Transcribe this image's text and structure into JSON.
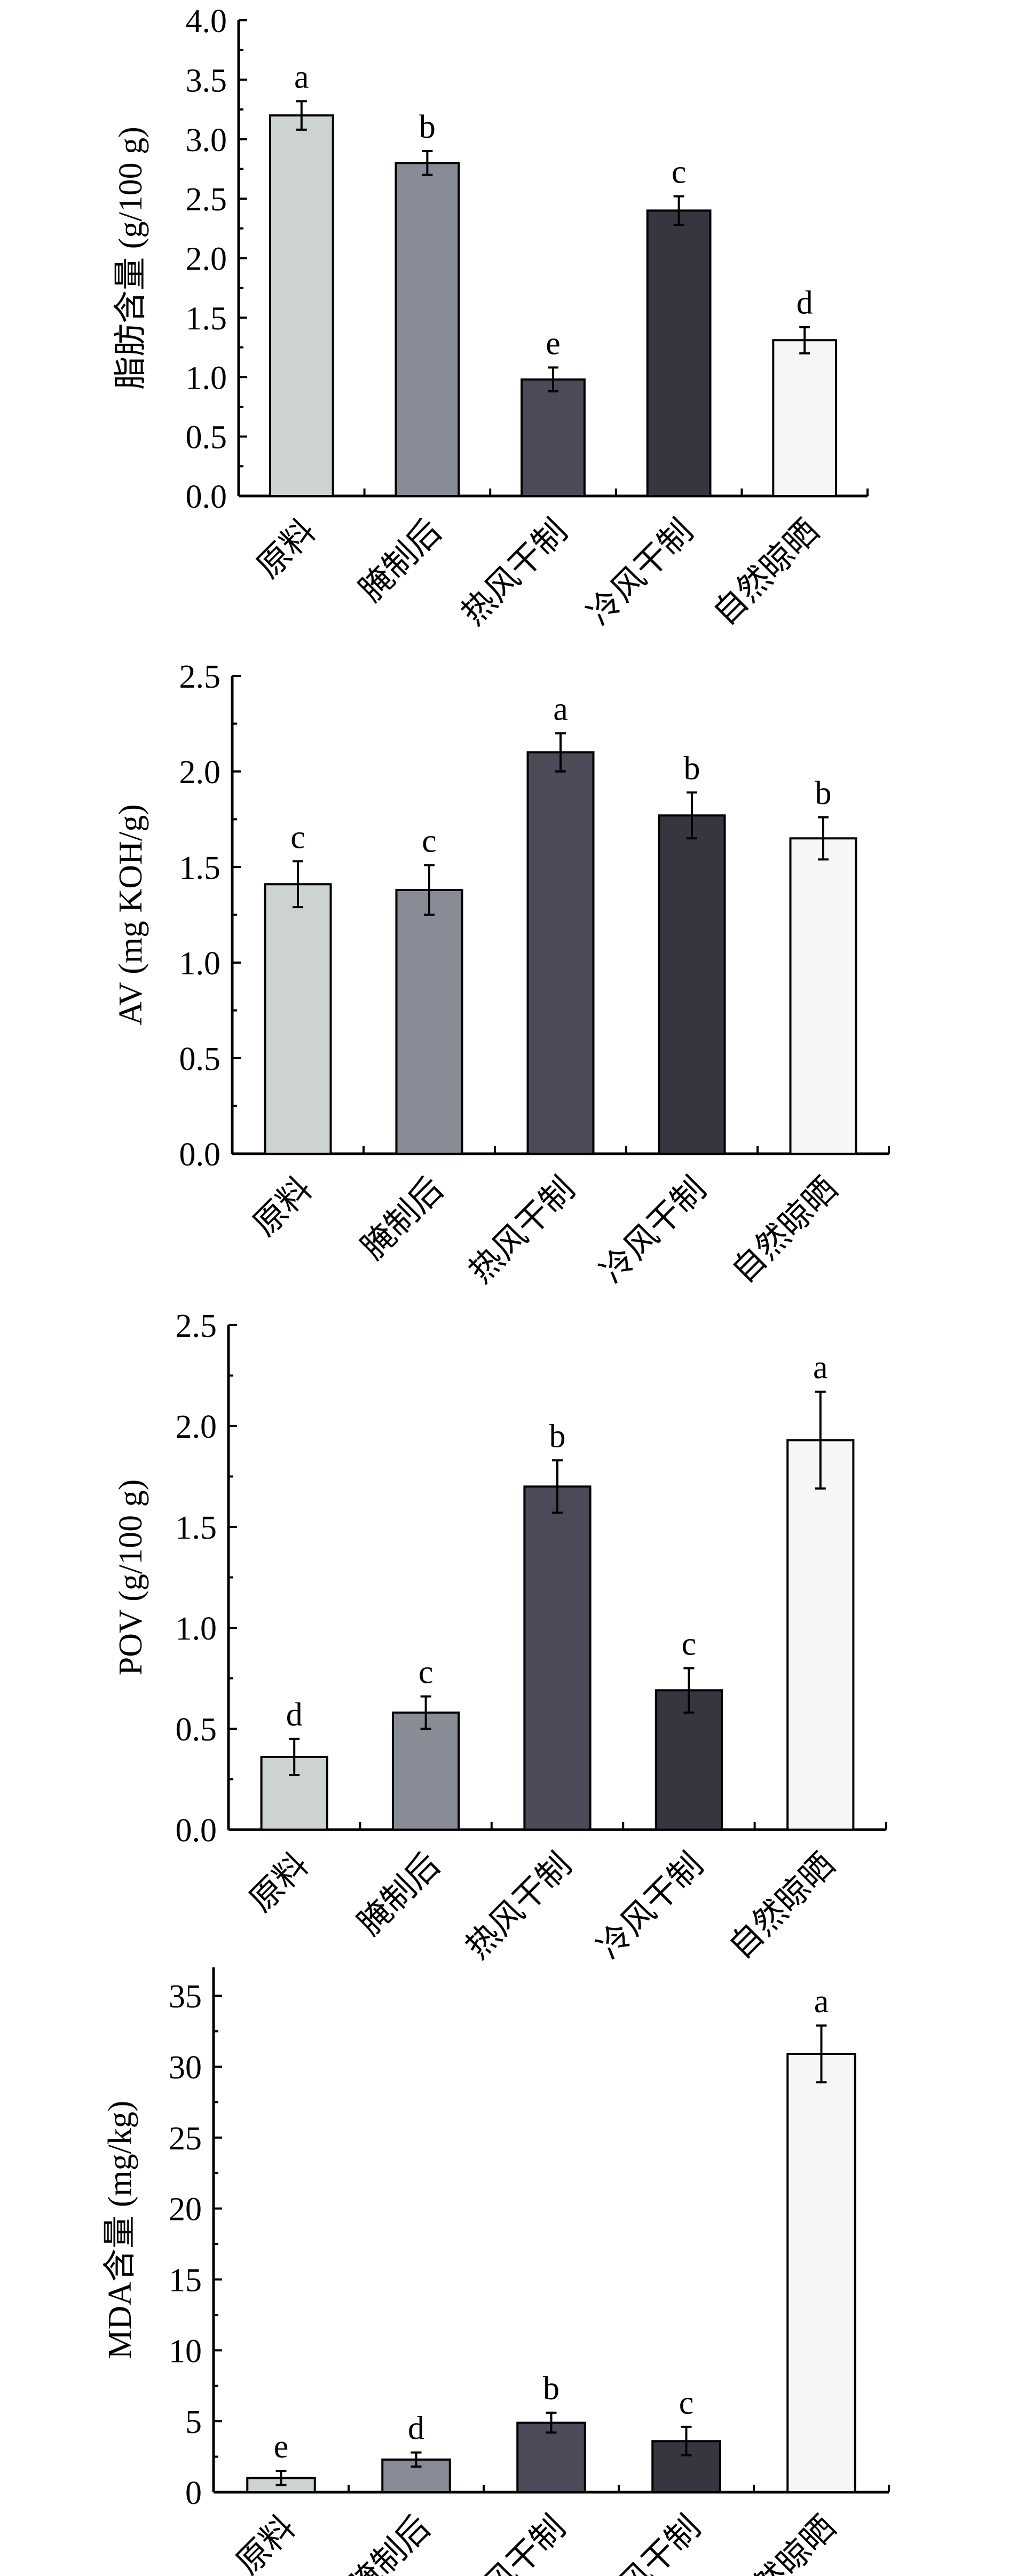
{
  "chart_data": [
    {
      "type": "bar",
      "ylabel": "脂肪含量 (g/100 g)",
      "categories": [
        "原料",
        "腌制后",
        "热风干制",
        "冷风干制",
        "自然晾晒"
      ],
      "values": [
        3.2,
        2.8,
        0.98,
        2.4,
        1.31
      ],
      "errors": [
        0.12,
        0.1,
        0.1,
        0.12,
        0.11
      ],
      "significance": [
        "a",
        "b",
        "e",
        "c",
        "d"
      ],
      "ylim": [
        0,
        4.0
      ],
      "yticks": [
        "0.0",
        "0.5",
        "1.0",
        "1.5",
        "2.0",
        "2.5",
        "3.0",
        "3.5",
        "4.0"
      ],
      "ytick_step": 0.5
    },
    {
      "type": "bar",
      "ylabel": "AV (mg KOH/g)",
      "categories": [
        "原料",
        "腌制后",
        "热风干制",
        "冷风干制",
        "自然晾晒"
      ],
      "values": [
        1.41,
        1.38,
        2.1,
        1.77,
        1.65
      ],
      "errors": [
        0.12,
        0.13,
        0.1,
        0.12,
        0.11
      ],
      "significance": [
        "c",
        "c",
        "a",
        "b",
        "b"
      ],
      "ylim": [
        0,
        2.5
      ],
      "yticks": [
        "0.0",
        "0.5",
        "1.0",
        "1.5",
        "2.0",
        "2.5"
      ],
      "ytick_step": 0.5
    },
    {
      "type": "bar",
      "ylabel": "POV (g/100 g)",
      "categories": [
        "原料",
        "腌制后",
        "热风干制",
        "冷风干制",
        "自然晾晒"
      ],
      "values": [
        0.36,
        0.58,
        1.7,
        0.69,
        1.93
      ],
      "errors": [
        0.09,
        0.08,
        0.13,
        0.11,
        0.24
      ],
      "significance": [
        "d",
        "c",
        "b",
        "c",
        "a"
      ],
      "ylim": [
        0,
        2.5
      ],
      "yticks": [
        "0.0",
        "0.5",
        "1.0",
        "1.5",
        "2.0",
        "2.5"
      ],
      "ytick_step": 0.5
    },
    {
      "type": "bar",
      "ylabel": "MDA含量 (mg/kg)",
      "categories": [
        "原料",
        "腌制后",
        "热风干制",
        "冷风干制",
        "自然晾晒"
      ],
      "values": [
        1.0,
        2.3,
        4.9,
        3.6,
        30.9
      ],
      "errors": [
        0.5,
        0.5,
        0.7,
        1.0,
        2.0
      ],
      "significance": [
        "e",
        "d",
        "b",
        "c",
        "a"
      ],
      "ylim": [
        0,
        37
      ],
      "yticks": [
        "0",
        "5",
        "10",
        "15",
        "20",
        "25",
        "30",
        "35"
      ],
      "ytick_step": 5
    }
  ],
  "colors": [
    "#cdd3cf",
    "#878c97",
    "#4b4a58",
    "#373640",
    "#f6f6f4"
  ]
}
